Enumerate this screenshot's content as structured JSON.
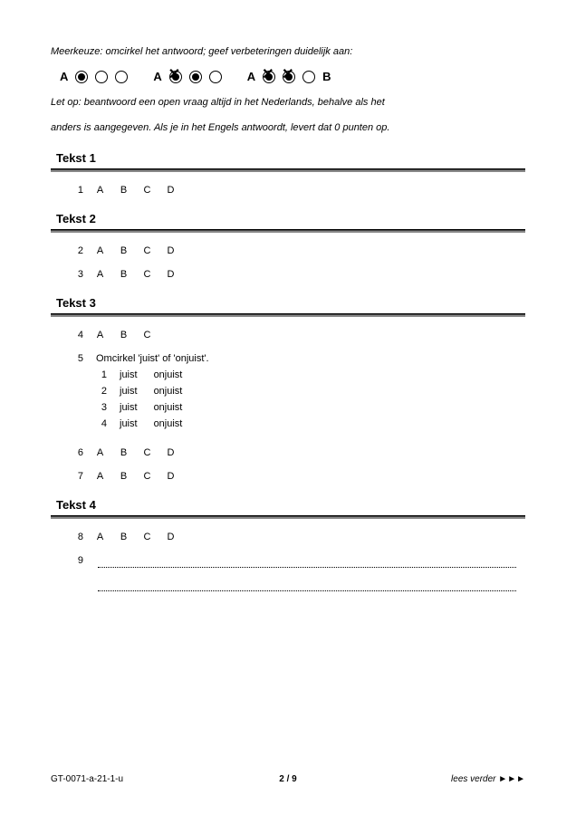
{
  "instructions": {
    "line1": "Meerkeuze: omcirkel het antwoord; geef verbeteringen duidelijk aan:",
    "line2a": "Let op: beantwoord een open vraag altijd in het Nederlands, behalve als het",
    "line2b": "anders is aangegeven. Als je in het Engels antwoordt, levert dat 0 punten op."
  },
  "bubbleSets": [
    {
      "label": "A",
      "items": [
        {
          "t": "B",
          "filled": true
        },
        {
          "t": "C"
        },
        {
          "t": "D"
        }
      ]
    },
    {
      "label": "A",
      "items": [
        {
          "t": "B",
          "filled": true,
          "crossed": true
        },
        {
          "t": "C",
          "filled": true
        },
        {
          "t": "D"
        }
      ]
    },
    {
      "label": "A",
      "items": [
        {
          "t": "B",
          "filled": true,
          "crossed": true
        },
        {
          "t": "C",
          "filled": true,
          "crossed": true
        },
        {
          "t": "D"
        }
      ],
      "trail": "B"
    }
  ],
  "optionLetters4": [
    "A",
    "B",
    "C",
    "D"
  ],
  "optionLetters3": [
    "A",
    "B",
    "C"
  ],
  "sections": [
    {
      "title": "Tekst 1",
      "questions": [
        {
          "num": "1",
          "type": "mc4"
        }
      ]
    },
    {
      "title": "Tekst 2",
      "questions": [
        {
          "num": "2",
          "type": "mc4"
        },
        {
          "num": "3",
          "type": "mc4"
        }
      ]
    },
    {
      "title": "Tekst 3",
      "questions": [
        {
          "num": "4",
          "type": "mc3"
        },
        {
          "num": "5",
          "type": "juist",
          "prompt": "Omcirkel 'juist' of 'onjuist'.",
          "rows": [
            {
              "n": "1",
              "a": "juist",
              "b": "onjuist"
            },
            {
              "n": "2",
              "a": "juist",
              "b": "onjuist"
            },
            {
              "n": "3",
              "a": "juist",
              "b": "onjuist"
            },
            {
              "n": "4",
              "a": "juist",
              "b": "onjuist"
            }
          ]
        },
        {
          "num": "6",
          "type": "mc4"
        },
        {
          "num": "7",
          "type": "mc4"
        }
      ]
    },
    {
      "title": "Tekst 4",
      "questions": [
        {
          "num": "8",
          "type": "mc4"
        },
        {
          "num": "9",
          "type": "open",
          "lines": 2
        }
      ]
    }
  ],
  "footer": {
    "left": "GT-0071-a-21-1-u",
    "mid": "2 / 9",
    "right": "lees verder ►►►"
  },
  "colors": {
    "text": "#000000",
    "bg": "#ffffff",
    "ruleDark": "#000000",
    "ruleLight": "#888888"
  }
}
